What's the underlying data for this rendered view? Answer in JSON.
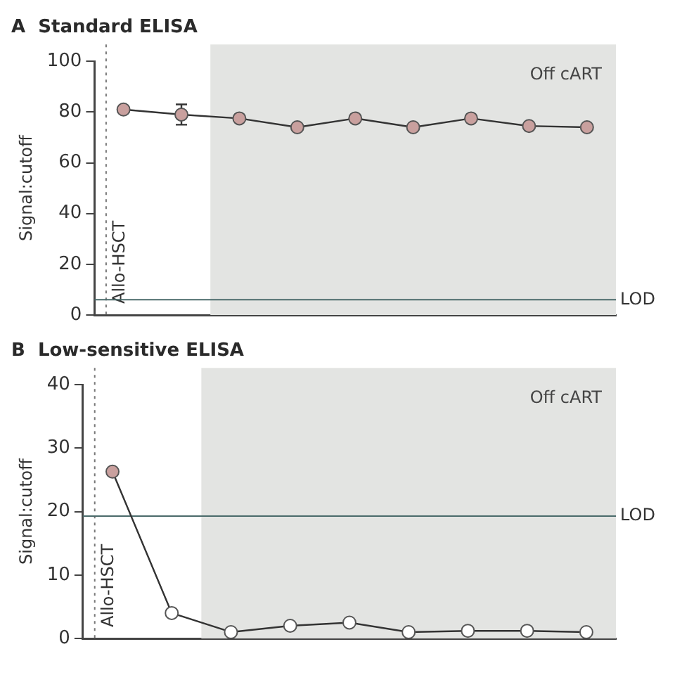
{
  "chart_data": [
    {
      "type": "line",
      "title": "A  Standard ELISA",
      "ylabel": "Signal:cutoff",
      "marker": "circle",
      "line_style": "solid",
      "grid": false,
      "legend": false,
      "tick_labels": "y",
      "categories": [
        null,
        null,
        null,
        null,
        null,
        null,
        null,
        null,
        null
      ],
      "series": [
        {
          "values": [
            81,
            79,
            77.5,
            74,
            77.5,
            74,
            77.5,
            74.5,
            74
          ],
          "errors": [
            null,
            4,
            null,
            null,
            null,
            null,
            null,
            null,
            null
          ],
          "color": "#333333",
          "colors": [
            "#c9a09e",
            "#c9a09e",
            "#c9a09e",
            "#c9a09e",
            "#c9a09e",
            "#c9a09e",
            "#c9a09e",
            "#c9a09e",
            "#c9a09e"
          ]
        }
      ],
      "ylim": [
        0,
        100
      ],
      "yticks": [
        0,
        20,
        40,
        60,
        80,
        100
      ],
      "ref_lines": [
        {
          "axis": "y",
          "value": 6,
          "label": "LOD",
          "line_style": "solid",
          "color": "#4a6a6a"
        }
      ],
      "annotations": [
        "Allo-HSCT",
        "Off cART"
      ]
    },
    {
      "type": "line",
      "title": "B  Low-sensitive ELISA",
      "ylabel": "Signal:cutoff",
      "marker": "circle",
      "line_style": "solid",
      "grid": false,
      "legend": false,
      "tick_labels": "y",
      "categories": [
        null,
        null,
        null,
        null,
        null,
        null,
        null,
        null,
        null
      ],
      "series": [
        {
          "values": [
            26.3,
            4,
            1,
            2,
            2.5,
            1,
            1.2,
            1.2,
            1
          ],
          "color": "#333333",
          "colors": [
            "#c9a09e",
            "#ffffff",
            "#ffffff",
            "#ffffff",
            "#ffffff",
            "#ffffff",
            "#ffffff",
            "#ffffff",
            "#ffffff"
          ]
        }
      ],
      "ylim": [
        0,
        40
      ],
      "yticks": [
        0,
        10,
        20,
        30,
        40
      ],
      "ref_lines": [
        {
          "axis": "y",
          "value": 19.3,
          "label": "LOD",
          "line_style": "solid",
          "color": "#4a6a6a"
        }
      ],
      "annotations": [
        "Allo-HSCT",
        "Off cART"
      ]
    }
  ]
}
